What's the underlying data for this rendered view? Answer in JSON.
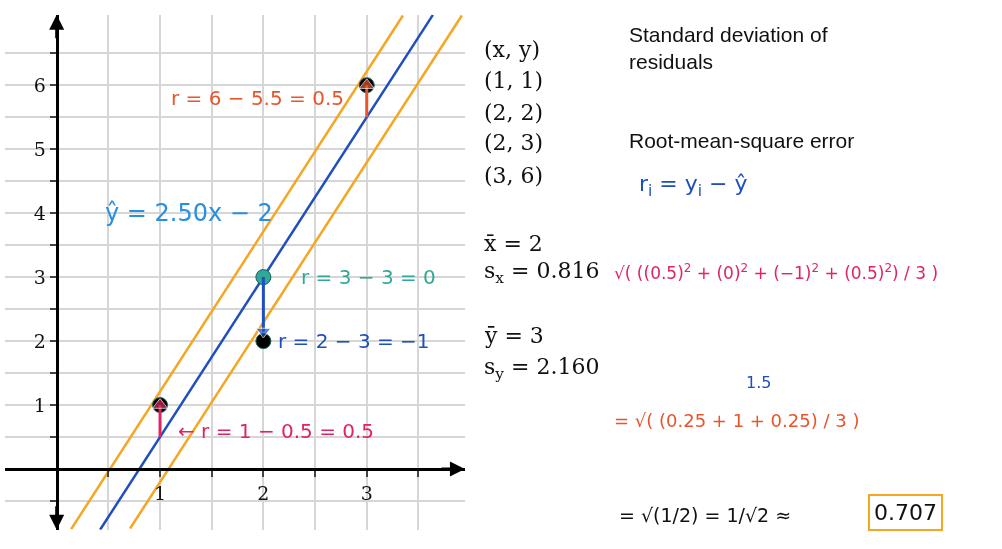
{
  "chart_data": {
    "type": "scatter",
    "xlim": [
      -0.5,
      3.95
    ],
    "ylim": [
      -0.95,
      7.1
    ],
    "xticks": [
      {
        "value": 0.5,
        "label": null
      },
      1,
      {
        "value": 1.5,
        "label": null
      },
      2,
      {
        "value": 2.5,
        "label": null
      },
      3,
      {
        "value": 3.5,
        "label": null
      }
    ],
    "yticks": [
      {
        "value": -0.5,
        "label": null
      },
      {
        "value": 0.5,
        "label": null
      },
      1,
      {
        "value": 1.5,
        "label": null
      },
      2,
      {
        "value": 2.5,
        "label": null
      },
      3,
      {
        "value": 3.5,
        "label": null
      },
      4,
      {
        "value": 4.5,
        "label": null
      },
      5,
      {
        "value": 5.5,
        "label": null
      },
      6,
      {
        "value": 6.5,
        "label": null
      }
    ],
    "grid": true,
    "legend": false,
    "series": [
      {
        "type": "line",
        "color": "#f5a623",
        "x": [
          0.14,
          3.35
        ],
        "values": [
          -0.94,
          7.09
        ]
      },
      {
        "type": "line",
        "color": "#f5a623",
        "x": [
          0.71,
          3.92
        ],
        "values": [
          -0.93,
          7.09
        ]
      },
      {
        "type": "line",
        "color": "#1f4fbf",
        "x": [
          0.42,
          3.64
        ],
        "values": [
          -0.95,
          7.1
        ]
      },
      {
        "marker": "circle",
        "x": [
          1,
          2,
          2,
          3
        ],
        "values": [
          1,
          2,
          3,
          6
        ],
        "colors": [
          "#000000",
          "#000000",
          "#2fa89a",
          "#000000"
        ]
      },
      {
        "type": "line",
        "color": "#e0245e",
        "x": [
          1,
          1
        ],
        "values": [
          0.5,
          1
        ],
        "marker": "triangle"
      },
      {
        "type": "line",
        "color": "#e8552c",
        "x": [
          3,
          3
        ],
        "values": [
          5.5,
          6
        ],
        "marker": "triangle"
      },
      {
        "type": "line",
        "color": "#1f4fbf",
        "x": [
          2,
          2
        ],
        "values": [
          3,
          2.15
        ],
        "marker": "triangle"
      }
    ],
    "annotations": [
      "ŷ = 2.50x − 2",
      "r = 6 − 5.5 = 0.5",
      "r = 3 − 3 = 0",
      "r = 2 − 3 = −1",
      "← r = 1 − 0.5 = 0.5",
      "(x, y)",
      "(1, 1)",
      "(2, 2)",
      "(2, 3)",
      "(3, 6)",
      "x̄ = 2",
      "s$_{x}$ = 0.816",
      "ȳ = 3",
      "s$_{y}$ = 2.160",
      "Standard deviation of\nresiduals",
      "Root-mean-square error",
      "r$_{i}$ = y$_{i}$ − ŷ",
      "√( ((0.5)$^{2}$ + (0)$^{2}$ + (−1)$^{2}$ + (0.5)$^{2}$) / 3 )",
      "1.5",
      "= √( (0.25 + 1 + 0.25) / 3 )",
      "= √(1/2) = 1/√2 ≈",
      "0.707"
    ]
  }
}
